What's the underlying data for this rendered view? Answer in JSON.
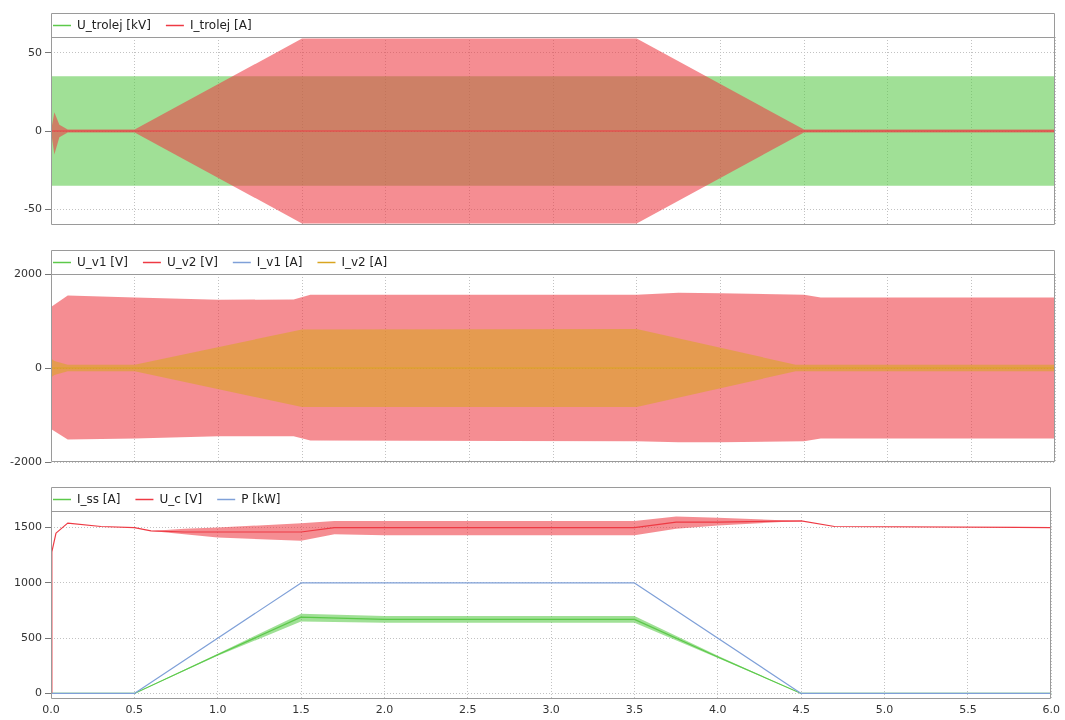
{
  "chart_data": [
    {
      "type": "line",
      "xlim": [
        0,
        6
      ],
      "xticks": [
        0,
        0.5,
        1,
        1.5,
        2,
        2.5,
        3,
        3.5,
        4,
        4.5,
        5,
        5.5,
        6
      ],
      "ylim": [
        -60,
        60
      ],
      "yticks": [
        -50,
        0,
        50
      ],
      "grid": true,
      "legend": "top left",
      "marker": "none",
      "line_style": "solid",
      "tick_labels": "y",
      "series": [
        {
          "name": "U_trolej [kV]",
          "color": "#5cc94a",
          "x": [
            0,
            6
          ],
          "values": [
            null,
            null
          ],
          "lower": [
            -35,
            -35
          ],
          "upper": [
            35,
            35
          ]
        },
        {
          "name": "I_trolej [A]",
          "color": "#ee3a44",
          "x": [
            0,
            0.02,
            0.05,
            0.1,
            0.5,
            1.5,
            3.5,
            4.5,
            6
          ],
          "values": [
            0,
            0,
            0,
            0,
            0,
            0,
            0,
            0,
            0
          ],
          "lower": [
            0,
            -15,
            -4,
            -1,
            -1,
            -59,
            -59,
            -1,
            -1
          ],
          "upper": [
            0,
            12,
            4,
            1,
            1,
            59,
            59,
            1,
            1
          ]
        }
      ]
    },
    {
      "type": "line",
      "xlim": [
        0,
        6
      ],
      "xticks": [
        0,
        0.5,
        1,
        1.5,
        2,
        2.5,
        3,
        3.5,
        4,
        4.5,
        5,
        5.5,
        6
      ],
      "ylim": [
        -2000,
        2000
      ],
      "yticks": [
        -2000,
        0,
        2000
      ],
      "grid": true,
      "legend": "top left",
      "marker": "none",
      "line_style": "solid",
      "tick_labels": "y",
      "series": [
        {
          "name": "U_v1 [V]",
          "color": "#5cc94a"
        },
        {
          "name": "U_v2 [V]",
          "color": "#ee3a44",
          "x": [
            0,
            0.1,
            0.5,
            1,
            1.45,
            1.55,
            3.5,
            3.75,
            4,
            4.5,
            4.6,
            6
          ],
          "values": [
            null,
            null,
            null,
            null,
            null,
            null,
            null,
            null,
            null,
            null,
            null,
            null
          ],
          "lower": [
            -1300,
            -1520,
            -1500,
            -1450,
            -1450,
            -1540,
            -1560,
            -1580,
            -1580,
            -1560,
            -1500,
            -1500
          ],
          "upper": [
            1300,
            1540,
            1500,
            1450,
            1460,
            1560,
            1560,
            1600,
            1590,
            1560,
            1500,
            1500
          ]
        },
        {
          "name": "I_v1 [A]",
          "color": "#7fa0d8"
        },
        {
          "name": "I_v2 [A]",
          "color": "#d9a520",
          "x": [
            0,
            0.02,
            0.1,
            0.5,
            1.5,
            3.5,
            4.45,
            6
          ],
          "values": [
            0,
            0,
            0,
            0,
            0,
            0,
            0,
            0
          ],
          "lower": [
            -200,
            -150,
            -70,
            -70,
            -830,
            -830,
            -70,
            -70
          ],
          "upper": [
            200,
            150,
            70,
            70,
            820,
            830,
            70,
            70
          ]
        }
      ]
    },
    {
      "type": "line",
      "xlim": [
        0,
        6
      ],
      "xticks": [
        {
          "value": 0,
          "label": "0.0"
        },
        0.5,
        {
          "value": 1,
          "label": "1.0"
        },
        1.5,
        {
          "value": 2,
          "label": "2.0"
        },
        2.5,
        {
          "value": 3,
          "label": "3.0"
        },
        3.5,
        {
          "value": 4,
          "label": "4.0"
        },
        4.5,
        {
          "value": 5,
          "label": "5.0"
        },
        5.5,
        {
          "value": 6,
          "label": "6.0"
        }
      ],
      "ylim": [
        -50,
        1650
      ],
      "yticks": [
        0,
        500,
        1000,
        1500
      ],
      "grid": true,
      "legend": "top left",
      "marker": "none",
      "line_style": "solid",
      "series": [
        {
          "name": "I_ss [A]",
          "color": "#5cc94a",
          "x": [
            0,
            0.5,
            1,
            1.5,
            2,
            3.5,
            4,
            4.5,
            6
          ],
          "values": [
            0,
            0,
            350,
            690,
            670,
            670,
            330,
            0,
            0
          ],
          "lower": [
            0,
            0,
            340,
            650,
            640,
            640,
            320,
            0,
            0
          ],
          "upper": [
            0,
            0,
            360,
            720,
            700,
            700,
            340,
            0,
            0
          ]
        },
        {
          "name": "U_c [V]",
          "color": "#ee3a44",
          "x": [
            0,
            0.005,
            0.03,
            0.1,
            0.3,
            0.5,
            0.6,
            0.8,
            1,
            1.5,
            1.7,
            2,
            3.5,
            3.75,
            4,
            4.5,
            4.7,
            6
          ],
          "values": [
            0,
            1280,
            1450,
            1540,
            1510,
            1500,
            1470,
            1460,
            1460,
            1460,
            1500,
            1500,
            1500,
            1550,
            1550,
            1560,
            1510,
            1500
          ],
          "lower": [
            0,
            1280,
            1450,
            1540,
            1510,
            1500,
            1470,
            1440,
            1410,
            1380,
            1440,
            1430,
            1430,
            1490,
            1520,
            1560,
            1510,
            1500
          ],
          "upper": [
            0,
            1280,
            1450,
            1540,
            1510,
            1500,
            1470,
            1490,
            1500,
            1540,
            1560,
            1560,
            1560,
            1600,
            1590,
            1560,
            1510,
            1500
          ]
        },
        {
          "name": "P [kW]",
          "color": "#7fa0d8",
          "x": [
            0,
            0.5,
            1.5,
            3.5,
            4.5,
            6
          ],
          "values": [
            0,
            0,
            1000,
            1000,
            0,
            0
          ]
        }
      ]
    }
  ]
}
